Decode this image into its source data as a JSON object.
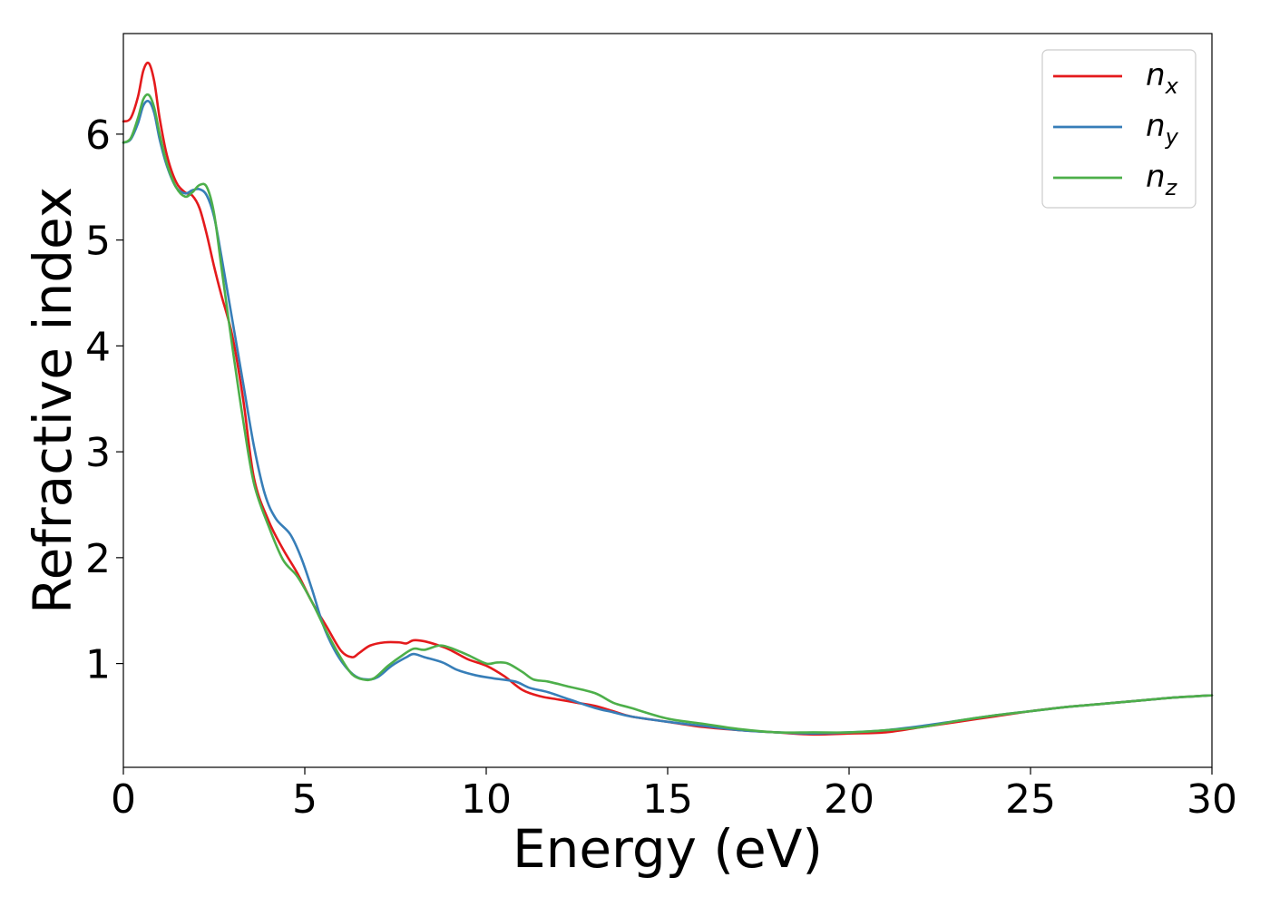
{
  "chart_data": {
    "type": "line",
    "xlabel": "Energy (eV)",
    "ylabel": "Refractive index",
    "xlim": [
      0,
      30
    ],
    "ylim": [
      0,
      7
    ],
    "xticks": [
      0,
      5,
      10,
      15,
      20,
      25,
      30
    ],
    "yticks": [
      1,
      2,
      3,
      4,
      5,
      6
    ],
    "grid": false,
    "legend_position": "top-right",
    "series": [
      {
        "name": "x",
        "base": "n",
        "color": "#e41a1c",
        "points": [
          [
            0,
            6.12
          ],
          [
            0.2,
            6.15
          ],
          [
            0.4,
            6.35
          ],
          [
            0.55,
            6.6
          ],
          [
            0.7,
            6.67
          ],
          [
            0.85,
            6.5
          ],
          [
            1.0,
            6.15
          ],
          [
            1.2,
            5.8
          ],
          [
            1.45,
            5.55
          ],
          [
            1.7,
            5.45
          ],
          [
            1.9,
            5.42
          ],
          [
            2.1,
            5.3
          ],
          [
            2.3,
            5.05
          ],
          [
            2.5,
            4.75
          ],
          [
            2.7,
            4.48
          ],
          [
            3.0,
            4.1
          ],
          [
            3.3,
            3.5
          ],
          [
            3.6,
            2.75
          ],
          [
            4.0,
            2.35
          ],
          [
            4.4,
            2.08
          ],
          [
            4.8,
            1.85
          ],
          [
            5.2,
            1.58
          ],
          [
            5.6,
            1.35
          ],
          [
            6.0,
            1.12
          ],
          [
            6.3,
            1.06
          ],
          [
            6.5,
            1.1
          ],
          [
            6.8,
            1.17
          ],
          [
            7.2,
            1.2
          ],
          [
            7.6,
            1.2
          ],
          [
            7.8,
            1.19
          ],
          [
            8.0,
            1.22
          ],
          [
            8.3,
            1.21
          ],
          [
            8.7,
            1.17
          ],
          [
            9.0,
            1.13
          ],
          [
            9.5,
            1.04
          ],
          [
            10.0,
            0.98
          ],
          [
            10.5,
            0.88
          ],
          [
            11.0,
            0.75
          ],
          [
            11.5,
            0.69
          ],
          [
            12.0,
            0.66
          ],
          [
            12.5,
            0.63
          ],
          [
            13.0,
            0.6
          ],
          [
            13.5,
            0.55
          ],
          [
            14.0,
            0.5
          ],
          [
            15.0,
            0.45
          ],
          [
            16.0,
            0.4
          ],
          [
            17.0,
            0.37
          ],
          [
            18.0,
            0.35
          ],
          [
            19.0,
            0.33
          ],
          [
            20.0,
            0.34
          ],
          [
            21.0,
            0.35
          ],
          [
            22.0,
            0.4
          ],
          [
            23.0,
            0.45
          ],
          [
            24.0,
            0.5
          ],
          [
            25.0,
            0.55
          ],
          [
            26.0,
            0.59
          ],
          [
            27.0,
            0.62
          ],
          [
            28.0,
            0.65
          ],
          [
            29.0,
            0.68
          ],
          [
            30.0,
            0.7
          ]
        ]
      },
      {
        "name": "y",
        "base": "n",
        "color": "#377eb8",
        "points": [
          [
            0,
            5.92
          ],
          [
            0.2,
            5.95
          ],
          [
            0.4,
            6.1
          ],
          [
            0.55,
            6.27
          ],
          [
            0.7,
            6.31
          ],
          [
            0.85,
            6.2
          ],
          [
            1.0,
            5.95
          ],
          [
            1.2,
            5.7
          ],
          [
            1.45,
            5.5
          ],
          [
            1.7,
            5.44
          ],
          [
            1.9,
            5.47
          ],
          [
            2.1,
            5.48
          ],
          [
            2.3,
            5.42
          ],
          [
            2.5,
            5.22
          ],
          [
            2.7,
            4.85
          ],
          [
            3.0,
            4.25
          ],
          [
            3.3,
            3.65
          ],
          [
            3.6,
            3.05
          ],
          [
            3.9,
            2.6
          ],
          [
            4.2,
            2.37
          ],
          [
            4.6,
            2.22
          ],
          [
            4.9,
            2.0
          ],
          [
            5.2,
            1.7
          ],
          [
            5.5,
            1.37
          ],
          [
            5.8,
            1.14
          ],
          [
            6.1,
            0.98
          ],
          [
            6.4,
            0.88
          ],
          [
            6.7,
            0.85
          ],
          [
            7.0,
            0.87
          ],
          [
            7.4,
            0.98
          ],
          [
            7.8,
            1.06
          ],
          [
            8.0,
            1.09
          ],
          [
            8.3,
            1.06
          ],
          [
            8.8,
            1.01
          ],
          [
            9.2,
            0.94
          ],
          [
            9.7,
            0.89
          ],
          [
            10.2,
            0.86
          ],
          [
            10.8,
            0.83
          ],
          [
            11.2,
            0.77
          ],
          [
            11.7,
            0.73
          ],
          [
            12.3,
            0.66
          ],
          [
            13.0,
            0.58
          ],
          [
            13.5,
            0.54
          ],
          [
            14.0,
            0.5
          ],
          [
            15.0,
            0.45
          ],
          [
            16.0,
            0.41
          ],
          [
            17.0,
            0.37
          ],
          [
            18.0,
            0.35
          ],
          [
            19.0,
            0.34
          ],
          [
            20.0,
            0.35
          ],
          [
            21.0,
            0.37
          ],
          [
            22.0,
            0.41
          ],
          [
            23.0,
            0.46
          ],
          [
            24.0,
            0.51
          ],
          [
            25.0,
            0.55
          ],
          [
            26.0,
            0.59
          ],
          [
            27.0,
            0.62
          ],
          [
            28.0,
            0.65
          ],
          [
            29.0,
            0.68
          ],
          [
            30.0,
            0.7
          ]
        ]
      },
      {
        "name": "z",
        "base": "n",
        "color": "#4daf4a",
        "points": [
          [
            0,
            5.92
          ],
          [
            0.2,
            5.96
          ],
          [
            0.4,
            6.15
          ],
          [
            0.55,
            6.33
          ],
          [
            0.7,
            6.37
          ],
          [
            0.85,
            6.25
          ],
          [
            1.0,
            6.0
          ],
          [
            1.2,
            5.72
          ],
          [
            1.45,
            5.5
          ],
          [
            1.7,
            5.41
          ],
          [
            1.9,
            5.45
          ],
          [
            2.1,
            5.52
          ],
          [
            2.3,
            5.5
          ],
          [
            2.5,
            5.25
          ],
          [
            2.7,
            4.75
          ],
          [
            3.0,
            4.0
          ],
          [
            3.3,
            3.3
          ],
          [
            3.6,
            2.7
          ],
          [
            4.0,
            2.3
          ],
          [
            4.4,
            1.98
          ],
          [
            4.8,
            1.82
          ],
          [
            5.2,
            1.58
          ],
          [
            5.6,
            1.3
          ],
          [
            6.0,
            1.05
          ],
          [
            6.3,
            0.9
          ],
          [
            6.6,
            0.85
          ],
          [
            6.9,
            0.86
          ],
          [
            7.3,
            0.98
          ],
          [
            7.7,
            1.08
          ],
          [
            8.0,
            1.14
          ],
          [
            8.3,
            1.13
          ],
          [
            8.7,
            1.17
          ],
          [
            9.0,
            1.15
          ],
          [
            9.5,
            1.08
          ],
          [
            10.0,
            1.0
          ],
          [
            10.3,
            1.01
          ],
          [
            10.6,
            1.0
          ],
          [
            11.0,
            0.92
          ],
          [
            11.3,
            0.85
          ],
          [
            11.7,
            0.83
          ],
          [
            12.3,
            0.78
          ],
          [
            13.0,
            0.72
          ],
          [
            13.5,
            0.63
          ],
          [
            14.0,
            0.58
          ],
          [
            15.0,
            0.48
          ],
          [
            16.0,
            0.43
          ],
          [
            17.0,
            0.38
          ],
          [
            18.0,
            0.35
          ],
          [
            19.0,
            0.35
          ],
          [
            20.0,
            0.35
          ],
          [
            21.0,
            0.37
          ],
          [
            22.0,
            0.4
          ],
          [
            23.0,
            0.46
          ],
          [
            24.0,
            0.51
          ],
          [
            25.0,
            0.55
          ],
          [
            26.0,
            0.59
          ],
          [
            27.0,
            0.62
          ],
          [
            28.0,
            0.65
          ],
          [
            29.0,
            0.68
          ],
          [
            30.0,
            0.7
          ]
        ]
      }
    ]
  }
}
